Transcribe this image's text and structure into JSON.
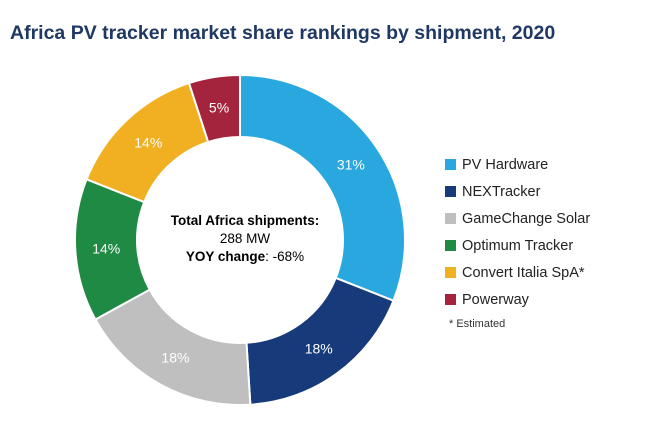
{
  "chart_data": {
    "type": "pie",
    "title": "Africa PV tracker market share rankings by shipment, 2020",
    "center": {
      "line1": "Total Africa shipments:",
      "line2": "288 MW",
      "line3_bold": "YOY change",
      "line3_rest": ": -68%"
    },
    "slices": [
      {
        "label": "PV Hardware",
        "value": 31,
        "display": "31%",
        "color": "#29a8e0"
      },
      {
        "label": "NEXTracker",
        "value": 18,
        "display": "18%",
        "color": "#163a7a"
      },
      {
        "label": "GameChange Solar",
        "value": 18,
        "display": "18%",
        "color": "#bfbfbf"
      },
      {
        "label": "Optimum Tracker",
        "value": 14,
        "display": "14%",
        "color": "#1f8a43"
      },
      {
        "label": "Convert Italia SpA*",
        "value": 14,
        "display": "14%",
        "color": "#f0b022"
      },
      {
        "label": "Powerway",
        "value": 5,
        "display": "5%",
        "color": "#a3243c"
      }
    ],
    "note": "* Estimated",
    "legend_position": "right"
  }
}
